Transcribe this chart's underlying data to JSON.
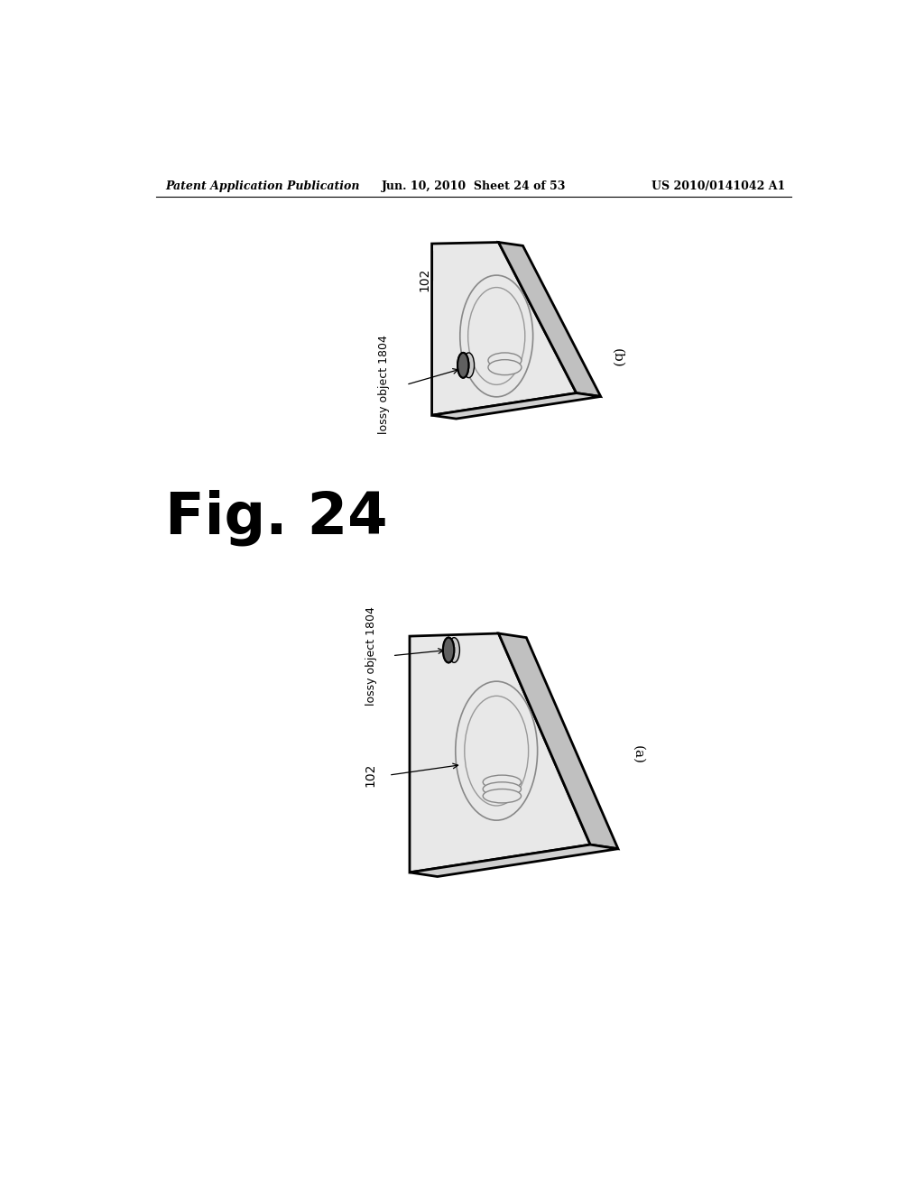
{
  "background_color": "#ffffff",
  "header_left": "Patent Application Publication",
  "header_mid": "Jun. 10, 2010  Sheet 24 of 53",
  "header_right": "US 2010/0141042 A1",
  "fig_label": "Fig. 24",
  "panel_a_label": "(a)",
  "panel_b_label": "(b)",
  "label_102_b": "102",
  "label_1804_b": "lossy object 1804",
  "label_102_a": "102",
  "label_1804_a": "lossy object 1804",
  "line_color": "#000000",
  "board_face_color": "#e8e8e8",
  "board_right_color": "#c0c0c0",
  "board_bottom_color": "#d0d0d0",
  "coil_color": "#888888",
  "disk_top_color": "#c8c8c8",
  "disk_side_color": "#a8a8a8",
  "disk_dark_color": "#606060"
}
